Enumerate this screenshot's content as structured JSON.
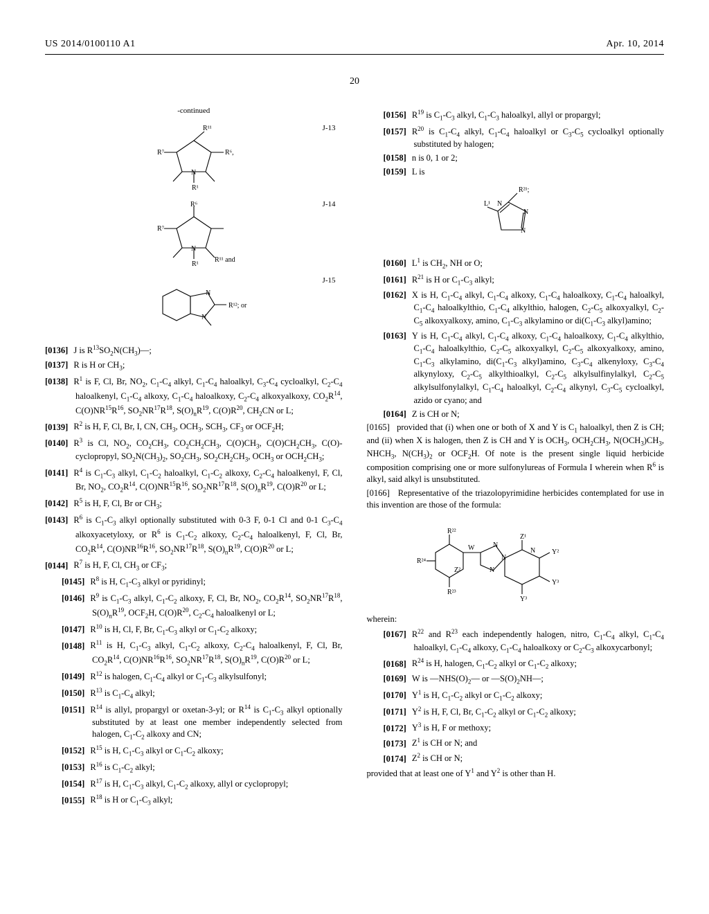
{
  "header": {
    "left": "US 2014/0100110 A1",
    "right": "Apr. 10, 2014"
  },
  "page_number": "20",
  "continued_label": "-continued",
  "chem_tags": {
    "j13": "J-13",
    "j14": "J-14",
    "j15": "J-15"
  },
  "left_paras": [
    {
      "n": "[0136]",
      "t": "J is R<sup>13</sup>SO<sub>2</sub>N(CH<sub>3</sub>)—;"
    },
    {
      "n": "[0137]",
      "t": "R is H or CH<sub>3</sub>;"
    },
    {
      "n": "[0138]",
      "t": "R<sup>1</sup> is F, Cl, Br, NO<sub>2</sub>, C<sub>1</sub>-C<sub>4</sub> alkyl, C<sub>1</sub>-C<sub>4</sub> haloalkyl, C<sub>3</sub>-C<sub>4</sub> cycloalkyl, C<sub>2</sub>-C<sub>4</sub> haloalkenyl, C<sub>1</sub>-C<sub>4</sub> alkoxy, C<sub>1</sub>-C<sub>4</sub> haloalkoxy, C<sub>2</sub>-C<sub>4</sub> alkoxyalkoxy, CO<sub>2</sub>R<sup>14</sup>, C(O)NR<sup>15</sup>R<sup>16</sup>, SO<sub>2</sub>NR<sup>17</sup>R<sup>18</sup>, S(O)<sub>n</sub>R<sup>19</sup>, C(O)R<sup>20</sup>, CH<sub>2</sub>CN or L;"
    },
    {
      "n": "[0139]",
      "t": "R<sup>2</sup> is H, F, Cl, Br, I, CN, CH<sub>3</sub>, OCH<sub>3</sub>, SCH<sub>3</sub>, CF<sub>3</sub> or OCF<sub>2</sub>H;"
    },
    {
      "n": "[0140]",
      "t": "R<sup>3</sup> is Cl, NO<sub>2</sub>, CO<sub>2</sub>CH<sub>3</sub>, CO<sub>2</sub>CH<sub>2</sub>CH<sub>3</sub>, C(O)CH<sub>3</sub>, C(O)CH<sub>2</sub>CH<sub>3</sub>, C(O)-cyclopropyl, SO<sub>2</sub>N(CH<sub>3</sub>)<sub>2</sub>, SO<sub>2</sub>CH<sub>3</sub>, SO<sub>2</sub>CH<sub>2</sub>CH<sub>3</sub>, OCH<sub>3</sub> or OCH<sub>2</sub>CH<sub>3</sub>;"
    },
    {
      "n": "[0141]",
      "t": "R<sup>4</sup> is C<sub>1</sub>-C<sub>3</sub> alkyl, C<sub>1</sub>-C<sub>2</sub> haloalkyl, C<sub>1</sub>-C<sub>2</sub> alkoxy, C<sub>2</sub>-C<sub>4</sub> haloalkenyl, F, Cl, Br, NO<sub>2</sub>, CO<sub>2</sub>R<sup>14</sup>, C(O)NR<sup>15</sup>R<sup>16</sup>, SO<sub>2</sub>NR<sup>17</sup>R<sup>18</sup>, S(O)<sub>n</sub>R<sup>19</sup>, C(O)R<sup>20</sup> or L;"
    },
    {
      "n": "[0142]",
      "t": "R<sup>5</sup> is H, F, Cl, Br or CH<sub>3</sub>;"
    },
    {
      "n": "[0143]",
      "t": "R<sup>6</sup> is C<sub>1</sub>-C<sub>3</sub> alkyl optionally substituted with 0-3 F, 0-1 Cl and 0-1 C<sub>3</sub>-C<sub>4</sub> alkoxyacetyloxy, or R<sup>6</sup> is C<sub>1</sub>-C<sub>2</sub> alkoxy, C<sub>2</sub>-C<sub>4</sub> haloalkenyl, F, Cl, Br, CO<sub>2</sub>R<sup>14</sup>, C(O)NR<sup>16</sup>R<sup>16</sup>, SO<sub>2</sub>NR<sup>17</sup>R<sup>18</sup>, S(O)<sub>n</sub>R<sup>19</sup>, C(O)R<sup>20</sup> or L;"
    },
    {
      "n": "[0144]",
      "t": "R<sup>7</sup> is H, F, Cl, CH<sub>3</sub> or CF<sub>3</sub>;"
    }
  ],
  "left_paras_indent2": [
    {
      "n": "[0145]",
      "t": "R<sup>8</sup> is H, C<sub>1</sub>-C<sub>3</sub> alkyl or pyridinyl;"
    },
    {
      "n": "[0146]",
      "t": "R<sup>9</sup> is C<sub>1</sub>-C<sub>3</sub> alkyl, C<sub>1</sub>-C<sub>2</sub> alkoxy, F, Cl, Br, NO<sub>2</sub>, CO<sub>2</sub>R<sup>14</sup>, SO<sub>2</sub>NR<sup>17</sup>R<sup>18</sup>, S(O)<sub>n</sub>R<sup>19</sup>, OCF<sub>2</sub>H, C(O)R<sup>20</sup>, C<sub>2</sub>-C<sub>4</sub> haloalkenyl or L;"
    },
    {
      "n": "[0147]",
      "t": "R<sup>10</sup> is H, Cl, F, Br, C<sub>1</sub>-C<sub>3</sub> alkyl or C<sub>1</sub>-C<sub>2</sub> alkoxy;"
    },
    {
      "n": "[0148]",
      "t": "R<sup>11</sup> is H, C<sub>1</sub>-C<sub>3</sub> alkyl, C<sub>1</sub>-C<sub>2</sub> alkoxy, C<sub>2</sub>-C<sub>4</sub> haloalkenyl, F, Cl, Br, CO<sub>2</sub>R<sup>14</sup>, C(O)NR<sup>16</sup>R<sup>16</sup>, SO<sub>2</sub>NR<sup>17</sup>R<sup>18</sup>, S(O)<sub>n</sub>R<sup>19</sup>, C(O)R<sup>20</sup> or L;"
    },
    {
      "n": "[0149]",
      "t": "R<sup>12</sup> is halogen, C<sub>1</sub>-C<sub>4</sub> alkyl or C<sub>1</sub>-C<sub>3</sub> alkylsulfonyl;"
    },
    {
      "n": "[0150]",
      "t": "R<sup>13</sup> is C<sub>1</sub>-C<sub>4</sub> alkyl;"
    },
    {
      "n": "[0151]",
      "t": "R<sup>14</sup> is allyl, propargyl or oxetan-3-yl; or R<sup>14</sup> is C<sub>1</sub>-C<sub>3</sub> alkyl optionally substituted by at least one member independently selected from halogen, C<sub>1</sub>-C<sub>2</sub> alkoxy and CN;"
    },
    {
      "n": "[0152]",
      "t": "R<sup>15</sup> is H, C<sub>1</sub>-C<sub>3</sub> alkyl or C<sub>1</sub>-C<sub>2</sub> alkoxy;"
    },
    {
      "n": "[0153]",
      "t": "R<sup>16</sup> is C<sub>1</sub>-C<sub>2</sub> alkyl;"
    },
    {
      "n": "[0154]",
      "t": "R<sup>17</sup> is H, C<sub>1</sub>-C<sub>3</sub> alkyl, C<sub>1</sub>-C<sub>2</sub> alkoxy, allyl or cyclopropyl;"
    },
    {
      "n": "[0155]",
      "t": "R<sup>18</sup> is H or C<sub>1</sub>-C<sub>3</sub> alkyl;"
    }
  ],
  "right_paras_top": [
    {
      "n": "[0156]",
      "t": "R<sup>19</sup> is C<sub>1</sub>-C<sub>3</sub> alkyl, C<sub>1</sub>-C<sub>3</sub> haloalkyl, allyl or propargyl;"
    },
    {
      "n": "[0157]",
      "t": "R<sup>20</sup> is C<sub>1</sub>-C<sub>4</sub> alkyl, C<sub>1</sub>-C<sub>4</sub> haloalkyl or C<sub>3</sub>-C<sub>5</sub> cycloalkyl optionally substituted by halogen;"
    },
    {
      "n": "[0158]",
      "t": "n is 0, 1 or 2;"
    },
    {
      "n": "[0159]",
      "t": "L is"
    }
  ],
  "right_paras_mid": [
    {
      "n": "[0160]",
      "t": "L<sup>1</sup> is CH<sub>2</sub>, NH or O;"
    },
    {
      "n": "[0161]",
      "t": "R<sup>21</sup> is H or C<sub>1</sub>-C<sub>3</sub> alkyl;"
    },
    {
      "n": "[0162]",
      "t": "X is H, C<sub>1</sub>-C<sub>4</sub> alkyl, C<sub>1</sub>-C<sub>4</sub> alkoxy, C<sub>1</sub>-C<sub>4</sub> haloalkoxy, C<sub>1</sub>-C<sub>4</sub> haloalkyl, C<sub>1</sub>-C<sub>4</sub> haloalkylthio, C<sub>1</sub>-C<sub>4</sub> alkylthio, halogen, C<sub>2</sub>-C<sub>5</sub> alkoxyalkyl, C<sub>2</sub>-C<sub>5</sub> alkoxyalkoxy, amino, C<sub>1</sub>-C<sub>3</sub> alkylamino or di(C<sub>1</sub>-C<sub>3</sub> alkyl)amino;"
    },
    {
      "n": "[0163]",
      "t": "Y is H, C<sub>1</sub>-C<sub>4</sub> alkyl, C<sub>1</sub>-C<sub>4</sub> alkoxy, C<sub>1</sub>-C<sub>4</sub> haloalkoxy, C<sub>1</sub>-C<sub>4</sub> alkylthio, C<sub>1</sub>-C<sub>4</sub> haloalkylthio, C<sub>2</sub>-C<sub>5</sub> alkoxyalkyl, C<sub>2</sub>-C<sub>5</sub> alkoxyalkoxy, amino, C<sub>1</sub>-C<sub>3</sub> alkylamino, di(C<sub>1</sub>-C<sub>3</sub> alkyl)amino, C<sub>3</sub>-C<sub>4</sub> alkenyloxy, C<sub>3</sub>-C<sub>4</sub> alkynyloxy, C<sub>2</sub>-C<sub>5</sub> alkylthioalkyl, C<sub>2</sub>-C<sub>5</sub> alkylsulfinylalkyl, C<sub>2</sub>-C<sub>5</sub> alkylsulfonylalkyl, C<sub>1</sub>-C<sub>4</sub> haloalkyl, C<sub>2</sub>-C<sub>4</sub> alkynyl, C<sub>3</sub>-C<sub>5</sub> cycloalkyl, azido or cyano; and"
    },
    {
      "n": "[0164]",
      "t": "Z is CH or N;"
    }
  ],
  "right_plain": [
    "<span class=\"num\">[0165]</span>&nbsp;&nbsp;&nbsp;provided that (i) when one or both of X and Y is C<sub>1</sub> haloalkyl, then Z is CH; and (ii) when X is halogen, then Z is CH and Y is OCH<sub>3</sub>, OCH<sub>2</sub>CH<sub>3</sub>, N(OCH<sub>3</sub>)CH<sub>3</sub>, NHCH<sub>3</sub>, N(CH<sub>3</sub>)<sub>2</sub> or OCF<sub>2</sub>H. Of note is the present single liquid herbicide composition comprising one or more sulfonylureas of Formula I wherein when R<sup>6</sup> is alkyl, said alkyl is unsubstituted.",
    "<span class=\"num\">[0166]</span>&nbsp;&nbsp;&nbsp;Representative of the triazolopyrimidine herbicides contemplated for use in this invention are those of the formula:"
  ],
  "wherein": "wherein:",
  "right_paras_bottom": [
    {
      "n": "[0167]",
      "t": "R<sup>22</sup> and R<sup>23</sup> each independently halogen, nitro, C<sub>1</sub>-C<sub>4</sub> alkyl, C<sub>1</sub>-C<sub>4</sub> haloalkyl, C<sub>1</sub>-C<sub>4</sub> alkoxy, C<sub>1</sub>-C<sub>4</sub> haloalkoxy or C<sub>2</sub>-C<sub>3</sub> alkoxycarbonyl;"
    },
    {
      "n": "[0168]",
      "t": "R<sup>24</sup> is H, halogen, C<sub>1</sub>-C<sub>2</sub> alkyl or C<sub>1</sub>-C<sub>2</sub> alkoxy;"
    },
    {
      "n": "[0169]",
      "t": "W is —NHS(O)<sub>2</sub>— or —S(O)<sub>2</sub>NH—;"
    },
    {
      "n": "[0170]",
      "t": "Y<sup>1</sup> is H, C<sub>1</sub>-C<sub>2</sub> alkyl or C<sub>1</sub>-C<sub>2</sub> alkoxy;"
    },
    {
      "n": "[0171]",
      "t": "Y<sup>2</sup> is H, F, Cl, Br, C<sub>1</sub>-C<sub>2</sub> alkyl or C<sub>1</sub>-C<sub>2</sub> alkoxy;"
    },
    {
      "n": "[0172]",
      "t": "Y<sup>3</sup> is H, F or methoxy;"
    },
    {
      "n": "[0173]",
      "t": "Z<sup>1</sup> is CH or N; and"
    },
    {
      "n": "[0174]",
      "t": "Z<sup>2</sup> is CH or N;"
    }
  ],
  "final": "provided that at least one of Y<sup>1</sup> and Y<sup>2</sup> is other than H."
}
